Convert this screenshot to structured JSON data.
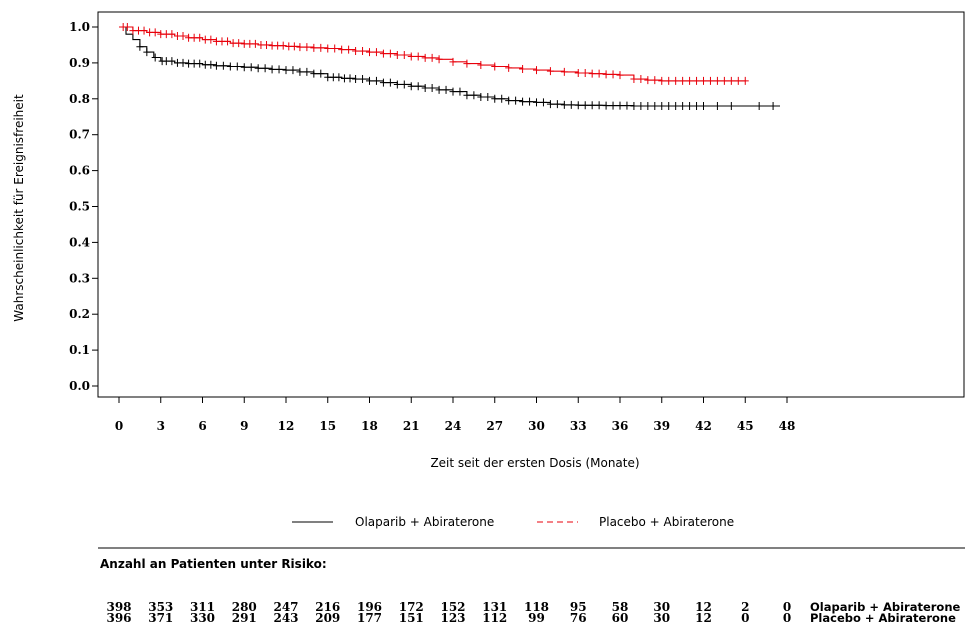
{
  "chart_data": {
    "type": "line",
    "subtype": "kaplan-meier",
    "xlabel": "Zeit seit der ersten Dosis (Monate)",
    "ylabel": "Wahrscheinlichkeit für Ereignisfreiheit",
    "xlim": [
      0,
      48
    ],
    "ylim": [
      0.0,
      1.0
    ],
    "x_ticks": [
      0,
      3,
      6,
      9,
      12,
      15,
      18,
      21,
      24,
      27,
      30,
      33,
      36,
      39,
      42,
      45,
      48
    ],
    "y_ticks": [
      "0.0",
      "0.1",
      "0.2",
      "0.3",
      "0.4",
      "0.5",
      "0.6",
      "0.7",
      "0.8",
      "0.9",
      "1.0"
    ],
    "grid": false,
    "legend_position": "bottom-center",
    "series": [
      {
        "name": "Olaparib + Abiraterone",
        "color": "#000000",
        "line_style": "solid",
        "legend_sample": "———",
        "x": [
          0,
          0.5,
          1,
          1.5,
          2,
          2.5,
          3,
          4,
          5,
          6,
          7,
          8,
          9,
          10,
          11,
          12,
          13,
          14,
          15,
          16,
          17,
          18,
          19,
          20,
          21,
          22,
          23,
          24,
          25,
          26,
          27,
          28,
          29,
          30,
          31,
          32,
          33,
          35,
          37,
          39,
          41,
          43,
          45,
          47.5
        ],
        "y": [
          1.0,
          0.98,
          0.965,
          0.945,
          0.93,
          0.915,
          0.905,
          0.9,
          0.898,
          0.895,
          0.892,
          0.89,
          0.888,
          0.885,
          0.882,
          0.88,
          0.875,
          0.87,
          0.86,
          0.857,
          0.855,
          0.85,
          0.845,
          0.84,
          0.835,
          0.83,
          0.825,
          0.82,
          0.81,
          0.805,
          0.8,
          0.795,
          0.792,
          0.79,
          0.785,
          0.783,
          0.782,
          0.781,
          0.78,
          0.78,
          0.78,
          0.78,
          0.78,
          0.78
        ],
        "censor_x": [
          1.5,
          2,
          2.6,
          3.1,
          3.4,
          3.8,
          4.2,
          4.6,
          5,
          5.4,
          5.8,
          6.2,
          6.6,
          7,
          7.5,
          8,
          8.5,
          9,
          9.5,
          10,
          10.5,
          11,
          11.5,
          12,
          12.5,
          13,
          13.5,
          14,
          14.5,
          15,
          15.4,
          15.8,
          16.2,
          16.6,
          17,
          17.5,
          18,
          18.5,
          19,
          19.5,
          20,
          20.5,
          21,
          21.5,
          22,
          22.5,
          23,
          23.5,
          24,
          24.5,
          25,
          25.5,
          26,
          26.5,
          27,
          27.5,
          28,
          28.5,
          29,
          29.5,
          30,
          30.5,
          31,
          31.5,
          32,
          32.5,
          33,
          33.5,
          34,
          34.5,
          35,
          35.5,
          36,
          36.5,
          37,
          37.5,
          38,
          38.5,
          39,
          39.5,
          40,
          40.5,
          41,
          41.5,
          42,
          43,
          44,
          46,
          47
        ]
      },
      {
        "name": "Placebo + Abiraterone",
        "color": "#e8000b",
        "line_style": "dashed",
        "legend_sample": "– – – –",
        "x": [
          0,
          1,
          2,
          3,
          4,
          5,
          6,
          7,
          8,
          9,
          10,
          11,
          12,
          13,
          14,
          15,
          16,
          17,
          18,
          19,
          20,
          21,
          22,
          23,
          24,
          25,
          26,
          27,
          28,
          29,
          30,
          31,
          32,
          33,
          34,
          35,
          36,
          37,
          38,
          39,
          40,
          42,
          44,
          45
        ],
        "y": [
          1.0,
          0.99,
          0.985,
          0.98,
          0.975,
          0.97,
          0.965,
          0.96,
          0.955,
          0.953,
          0.95,
          0.948,
          0.946,
          0.944,
          0.942,
          0.94,
          0.937,
          0.933,
          0.93,
          0.926,
          0.922,
          0.918,
          0.914,
          0.91,
          0.903,
          0.898,
          0.894,
          0.89,
          0.886,
          0.883,
          0.88,
          0.877,
          0.875,
          0.872,
          0.87,
          0.868,
          0.866,
          0.855,
          0.852,
          0.85,
          0.85,
          0.85,
          0.85,
          0.85
        ],
        "censor_x": [
          0.3,
          0.6,
          1,
          1.4,
          1.8,
          2.2,
          2.6,
          3,
          3.4,
          3.8,
          4.2,
          4.6,
          5,
          5.4,
          5.8,
          6.2,
          6.6,
          7,
          7.4,
          7.8,
          8.2,
          8.6,
          9,
          9.4,
          9.8,
          10.2,
          10.6,
          11,
          11.4,
          11.8,
          12.2,
          12.6,
          13,
          13.5,
          14,
          14.5,
          15,
          15.5,
          16,
          16.5,
          17,
          17.5,
          18,
          18.5,
          19,
          19.5,
          20,
          20.5,
          21,
          21.5,
          22,
          22.5,
          23,
          24,
          25,
          26,
          27,
          28,
          29,
          30,
          31,
          32,
          33,
          33.5,
          34,
          34.5,
          35,
          35.5,
          36,
          37,
          37.5,
          38,
          38.5,
          39,
          39.5,
          40,
          40.5,
          41,
          41.5,
          42,
          42.5,
          43,
          43.5,
          44,
          44.5,
          45
        ]
      }
    ]
  },
  "risk_table": {
    "title": "Anzahl an Patienten unter Risiko:",
    "rows": [
      {
        "name": "Olaparib + Abiraterone",
        "values": [
          "398",
          "353",
          "311",
          "280",
          "247",
          "216",
          "196",
          "172",
          "152",
          "131",
          "118",
          "95",
          "58",
          "30",
          "12",
          "2",
          "0"
        ]
      },
      {
        "name": "Placebo + Abiraterone",
        "values": [
          "396",
          "371",
          "330",
          "291",
          "243",
          "209",
          "177",
          "151",
          "123",
          "112",
          "99",
          "76",
          "60",
          "30",
          "12",
          "0",
          "0"
        ]
      }
    ]
  }
}
